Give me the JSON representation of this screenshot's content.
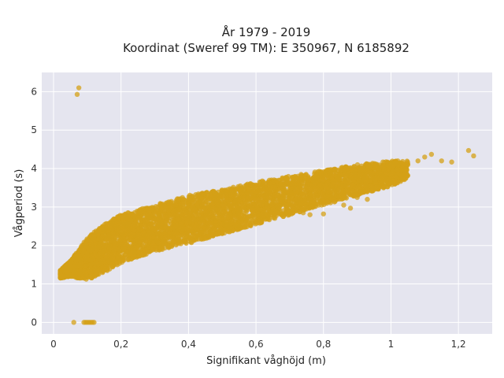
{
  "chart_data": {
    "type": "scatter",
    "title": "År 1979 - 2019",
    "subtitle": "Koordinat (Sweref 99 TM): E 350967, N 6185892",
    "xlabel": "Signifikant våghöjd (m)",
    "ylabel": "Vågperiod (s)",
    "xlim": [
      -0.035,
      1.3
    ],
    "ylim": [
      -0.3,
      6.5
    ],
    "x_ticks": [
      0,
      0.2,
      0.4,
      0.6,
      0.8,
      1,
      1.2
    ],
    "x_tick_labels": [
      "0",
      "0,2",
      "0,4",
      "0,6",
      "0,8",
      "1",
      "1,2"
    ],
    "y_ticks": [
      0,
      1,
      2,
      3,
      4,
      5,
      6
    ],
    "y_tick_labels": [
      "0",
      "1",
      "2",
      "3",
      "4",
      "5",
      "6"
    ],
    "grid": true,
    "marker_color": "#D4A017",
    "background_color": "#E5E5EF",
    "point_cloud": {
      "description": "dense cloud of points",
      "envelope_x": [
        0.02,
        0.05,
        0.1,
        0.15,
        0.2,
        0.3,
        0.4,
        0.5,
        0.6,
        0.7,
        0.8,
        0.9,
        1.0,
        1.05
      ],
      "envelope_lower": [
        1.15,
        1.2,
        1.1,
        1.3,
        1.55,
        1.85,
        2.05,
        2.3,
        2.55,
        2.8,
        3.05,
        3.3,
        3.55,
        3.75
      ],
      "envelope_upper": [
        1.35,
        1.6,
        2.2,
        2.55,
        2.8,
        3.05,
        3.3,
        3.45,
        3.65,
        3.8,
        3.95,
        4.1,
        4.2,
        4.2
      ]
    },
    "outliers": [
      {
        "x": 0.075,
        "y": 6.1
      },
      {
        "x": 0.07,
        "y": 5.93
      },
      {
        "x": 0.06,
        "y": 0.0
      },
      {
        "x": 0.09,
        "y": 0.0
      },
      {
        "x": 0.095,
        "y": 0.0
      },
      {
        "x": 0.1,
        "y": 0.0
      },
      {
        "x": 0.105,
        "y": 0.0
      },
      {
        "x": 0.11,
        "y": 0.0
      },
      {
        "x": 0.115,
        "y": 0.0
      },
      {
        "x": 0.12,
        "y": 0.0
      },
      {
        "x": 1.05,
        "y": 4.1
      },
      {
        "x": 1.08,
        "y": 4.2
      },
      {
        "x": 1.1,
        "y": 4.3
      },
      {
        "x": 1.12,
        "y": 4.37
      },
      {
        "x": 1.15,
        "y": 4.2
      },
      {
        "x": 1.18,
        "y": 4.17
      },
      {
        "x": 1.23,
        "y": 4.47
      },
      {
        "x": 1.245,
        "y": 4.33
      },
      {
        "x": 0.93,
        "y": 3.2
      },
      {
        "x": 0.9,
        "y": 3.25
      },
      {
        "x": 0.88,
        "y": 2.97
      },
      {
        "x": 0.86,
        "y": 3.05
      },
      {
        "x": 0.8,
        "y": 2.82
      },
      {
        "x": 0.76,
        "y": 2.8
      },
      {
        "x": 0.74,
        "y": 2.85
      },
      {
        "x": 0.72,
        "y": 2.9
      }
    ]
  }
}
